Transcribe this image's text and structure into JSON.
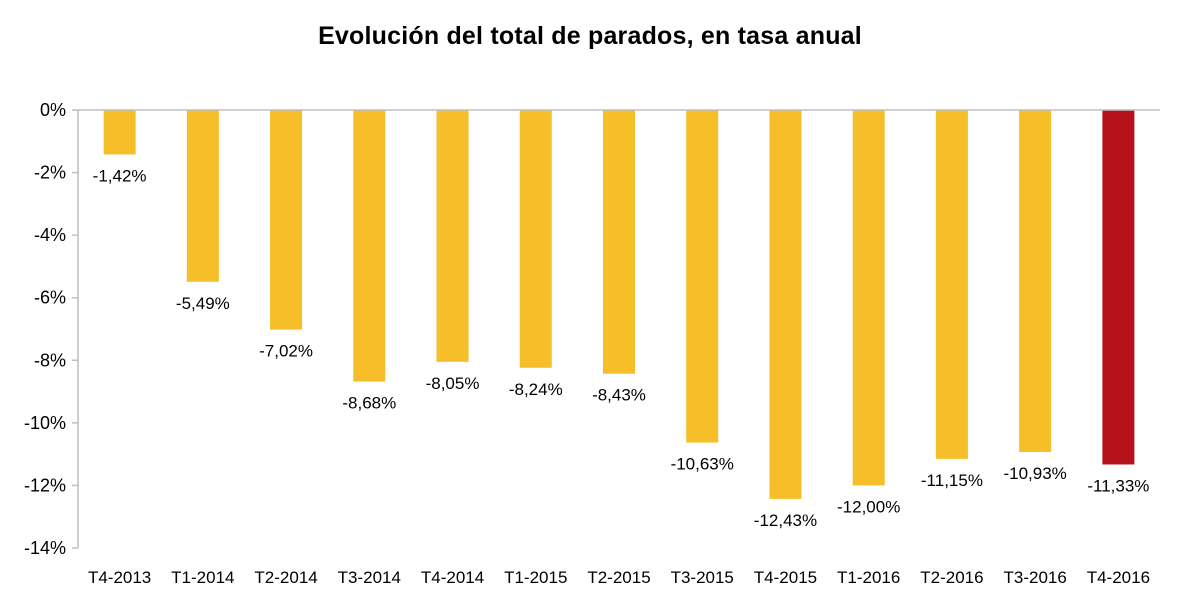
{
  "chart_data": {
    "type": "bar",
    "title": "Evolución del total de parados, en tasa anual",
    "xlabel": "",
    "ylabel": "",
    "categories": [
      "T4-2013",
      "T1-2014",
      "T2-2014",
      "T3-2014",
      "T4-2014",
      "T1-2015",
      "T2-2015",
      "T3-2015",
      "T4-2015",
      "T1-2016",
      "T2-2016",
      "T3-2016",
      "T4-2016"
    ],
    "values": [
      -1.42,
      -5.49,
      -7.02,
      -8.68,
      -8.05,
      -8.24,
      -8.43,
      -10.63,
      -12.43,
      -12.0,
      -11.15,
      -10.93,
      -11.33
    ],
    "data_labels": [
      "-1,42%",
      "-5,49%",
      "-7,02%",
      "-8,68%",
      "-8,05%",
      "-8,24%",
      "-8,43%",
      "-10,63%",
      "-12,43%",
      "-12,00%",
      "-11,15%",
      "-10,93%",
      "-11,33%"
    ],
    "y_ticks": [
      0,
      -2,
      -4,
      -6,
      -8,
      -10,
      -12,
      -14
    ],
    "y_tick_labels": [
      "0%",
      "-2%",
      "-4%",
      "-6%",
      "-8%",
      "-10%",
      "-12%",
      "-14%"
    ],
    "ylim": [
      -14,
      0
    ],
    "grid": false,
    "legend": "none",
    "colors": {
      "bar": "#F6BE28",
      "highlight": "#B5121B",
      "axis": "#BFBFBF"
    },
    "highlight_category": "T4-2016"
  }
}
